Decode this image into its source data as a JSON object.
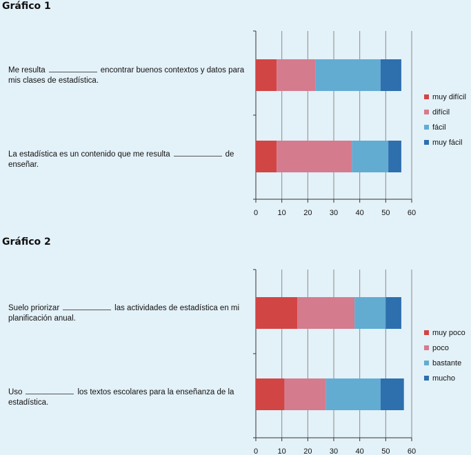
{
  "chart_data": [
    {
      "type": "bar",
      "orientation": "horizontal",
      "stacked": true,
      "title": "Gráfico 1",
      "categories": [
        {
          "before": "Me resulta",
          "after": "encontrar buenos contextos y datos para mis clases de estadística."
        },
        {
          "before": "La estadística es un contenido que me resulta",
          "after": "de enseñar."
        }
      ],
      "series": [
        {
          "name": "muy difícil",
          "color": "#d24545",
          "values": [
            8,
            8
          ]
        },
        {
          "name": "difícil",
          "color": "#d57b8e",
          "values": [
            15,
            29
          ]
        },
        {
          "name": "fácil",
          "color": "#62acd2",
          "values": [
            25,
            14
          ]
        },
        {
          "name": "muy fácil",
          "color": "#2e6fae",
          "values": [
            8,
            5
          ]
        }
      ],
      "xlim": [
        0,
        60
      ],
      "xticks": [
        "0",
        "10",
        "20",
        "30",
        "40",
        "50",
        "60"
      ],
      "grid": true,
      "legend": "right"
    },
    {
      "type": "bar",
      "orientation": "horizontal",
      "stacked": true,
      "title": "Gráfico 2",
      "categories": [
        {
          "before": "Suelo priorizar",
          "after": "las actividades de estadística en mi planificación anual."
        },
        {
          "before": "Uso",
          "after": "los textos escolares para la enseñanza de la estadística."
        }
      ],
      "series": [
        {
          "name": "muy poco",
          "color": "#d24545",
          "values": [
            16,
            11
          ]
        },
        {
          "name": "poco",
          "color": "#d57b8e",
          "values": [
            22,
            16
          ]
        },
        {
          "name": "bastante",
          "color": "#62acd2",
          "values": [
            12,
            21
          ]
        },
        {
          "name": "mucho",
          "color": "#2e6fae",
          "values": [
            6,
            9
          ]
        }
      ],
      "xlim": [
        0,
        60
      ],
      "xticks": [
        "0",
        "10",
        "20",
        "30",
        "40",
        "50",
        "60"
      ],
      "grid": true,
      "legend": "right"
    }
  ]
}
